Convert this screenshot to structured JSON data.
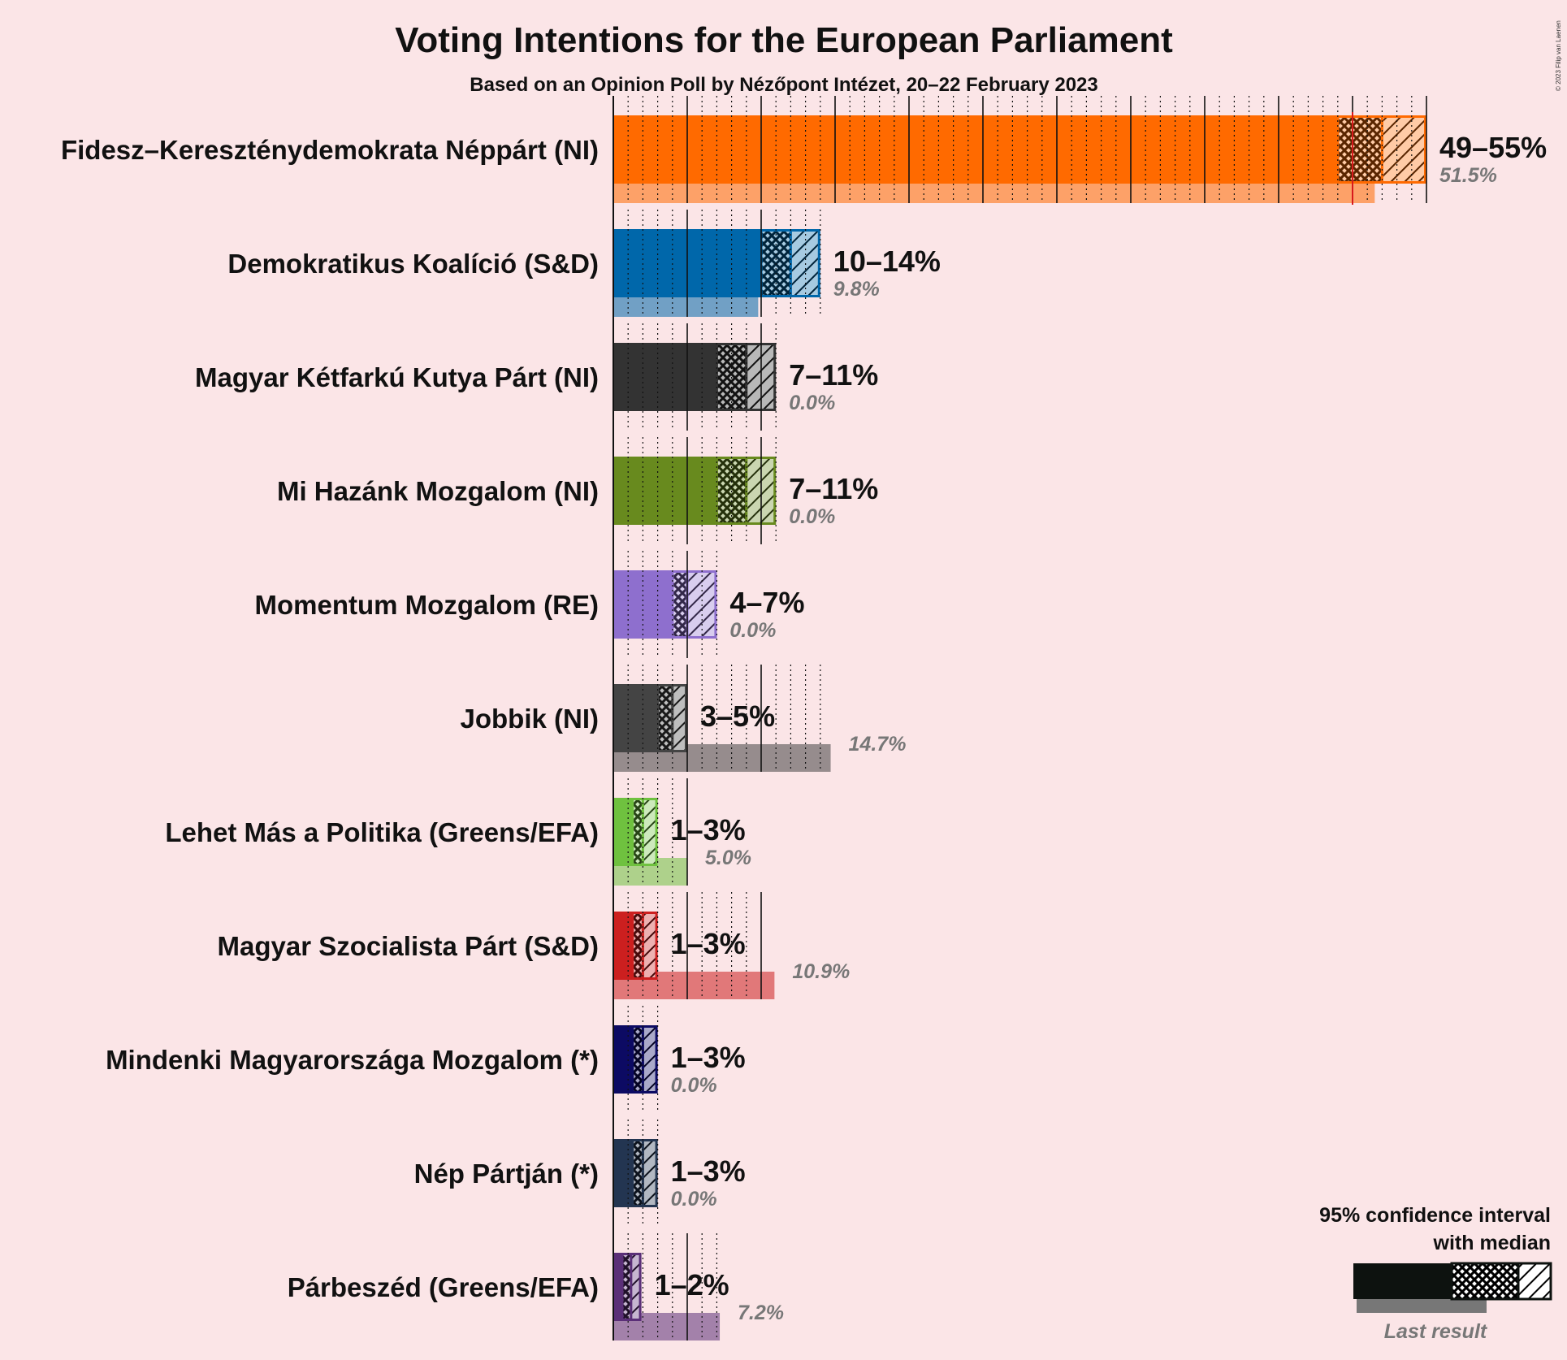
{
  "chart_data": {
    "type": "bar",
    "orientation": "horizontal",
    "title": "Voting Intentions for the European Parliament",
    "subtitle": "Based on an Opinion Poll by Nézőpont Intézet, 20–22 February 2023",
    "copyright": "© 2023 Filip van Laenen",
    "xlim": [
      0,
      55
    ],
    "grid": "dotted vertical lines every 1%, solid every 5%",
    "majority_line": 50,
    "colors": {
      "background": "#fbe5e7",
      "majority_line": "#d7191c"
    },
    "series": [
      {
        "name": "Fidesz–Kereszténydemokrata Néppárt (NI)",
        "color": "#ff6a00",
        "low": 49,
        "median": 52,
        "high": 55,
        "range_label": "49–55%",
        "last": 51.5,
        "last_label": "51.5%"
      },
      {
        "name": "Demokratikus Koalíció (S&D)",
        "color": "#0067aa",
        "low": 10,
        "median": 12,
        "high": 14,
        "range_label": "10–14%",
        "last": 9.8,
        "last_label": "9.8%"
      },
      {
        "name": "Magyar Kétfarkú Kutya Párt (NI)",
        "color": "#333333",
        "low": 7,
        "median": 9,
        "high": 11,
        "range_label": "7–11%",
        "last": 0.0,
        "last_label": "0.0%"
      },
      {
        "name": "Mi Hazánk Mozgalom (NI)",
        "color": "#688a1e",
        "low": 7,
        "median": 9,
        "high": 11,
        "range_label": "7–11%",
        "last": 0.0,
        "last_label": "0.0%"
      },
      {
        "name": "Momentum Mozgalom (RE)",
        "color": "#8e6fce",
        "low": 4,
        "median": 5,
        "high": 7,
        "range_label": "4–7%",
        "last": 0.0,
        "last_label": "0.0%"
      },
      {
        "name": "Jobbik (NI)",
        "color": "#444444",
        "low": 3,
        "median": 4,
        "high": 5,
        "range_label": "3–5%",
        "last": 14.7,
        "last_label": "14.7%"
      },
      {
        "name": "Lehet Más a Politika (Greens/EFA)",
        "color": "#6fc13f",
        "low": 1.3,
        "median": 2,
        "high": 3,
        "range_label": "1–3%",
        "last": 5.0,
        "last_label": "5.0%"
      },
      {
        "name": "Magyar Szocialista Párt (S&D)",
        "color": "#cc1f1f",
        "low": 1.3,
        "median": 2,
        "high": 3,
        "range_label": "1–3%",
        "last": 10.9,
        "last_label": "10.9%"
      },
      {
        "name": "Mindenki Magyarországa Mozgalom (*)",
        "color": "#0c0a63",
        "low": 1.3,
        "median": 2,
        "high": 3,
        "range_label": "1–3%",
        "last": 0.0,
        "last_label": "0.0%"
      },
      {
        "name": "Nép Pártján (*)",
        "color": "#233551",
        "low": 1.3,
        "median": 2,
        "high": 3,
        "range_label": "1–3%",
        "last": 0.0,
        "last_label": "0.0%"
      },
      {
        "name": "Párbeszéd (Greens/EFA)",
        "color": "#5b2f78",
        "low": 0.6,
        "median": 1.2,
        "high": 1.9,
        "range_label": "1–2%",
        "last": 7.2,
        "last_label": "7.2%"
      }
    ],
    "legend": {
      "line1": "95% confidence interval",
      "line2": "with median",
      "last_result": "Last result",
      "placement": "bottom-right"
    }
  }
}
